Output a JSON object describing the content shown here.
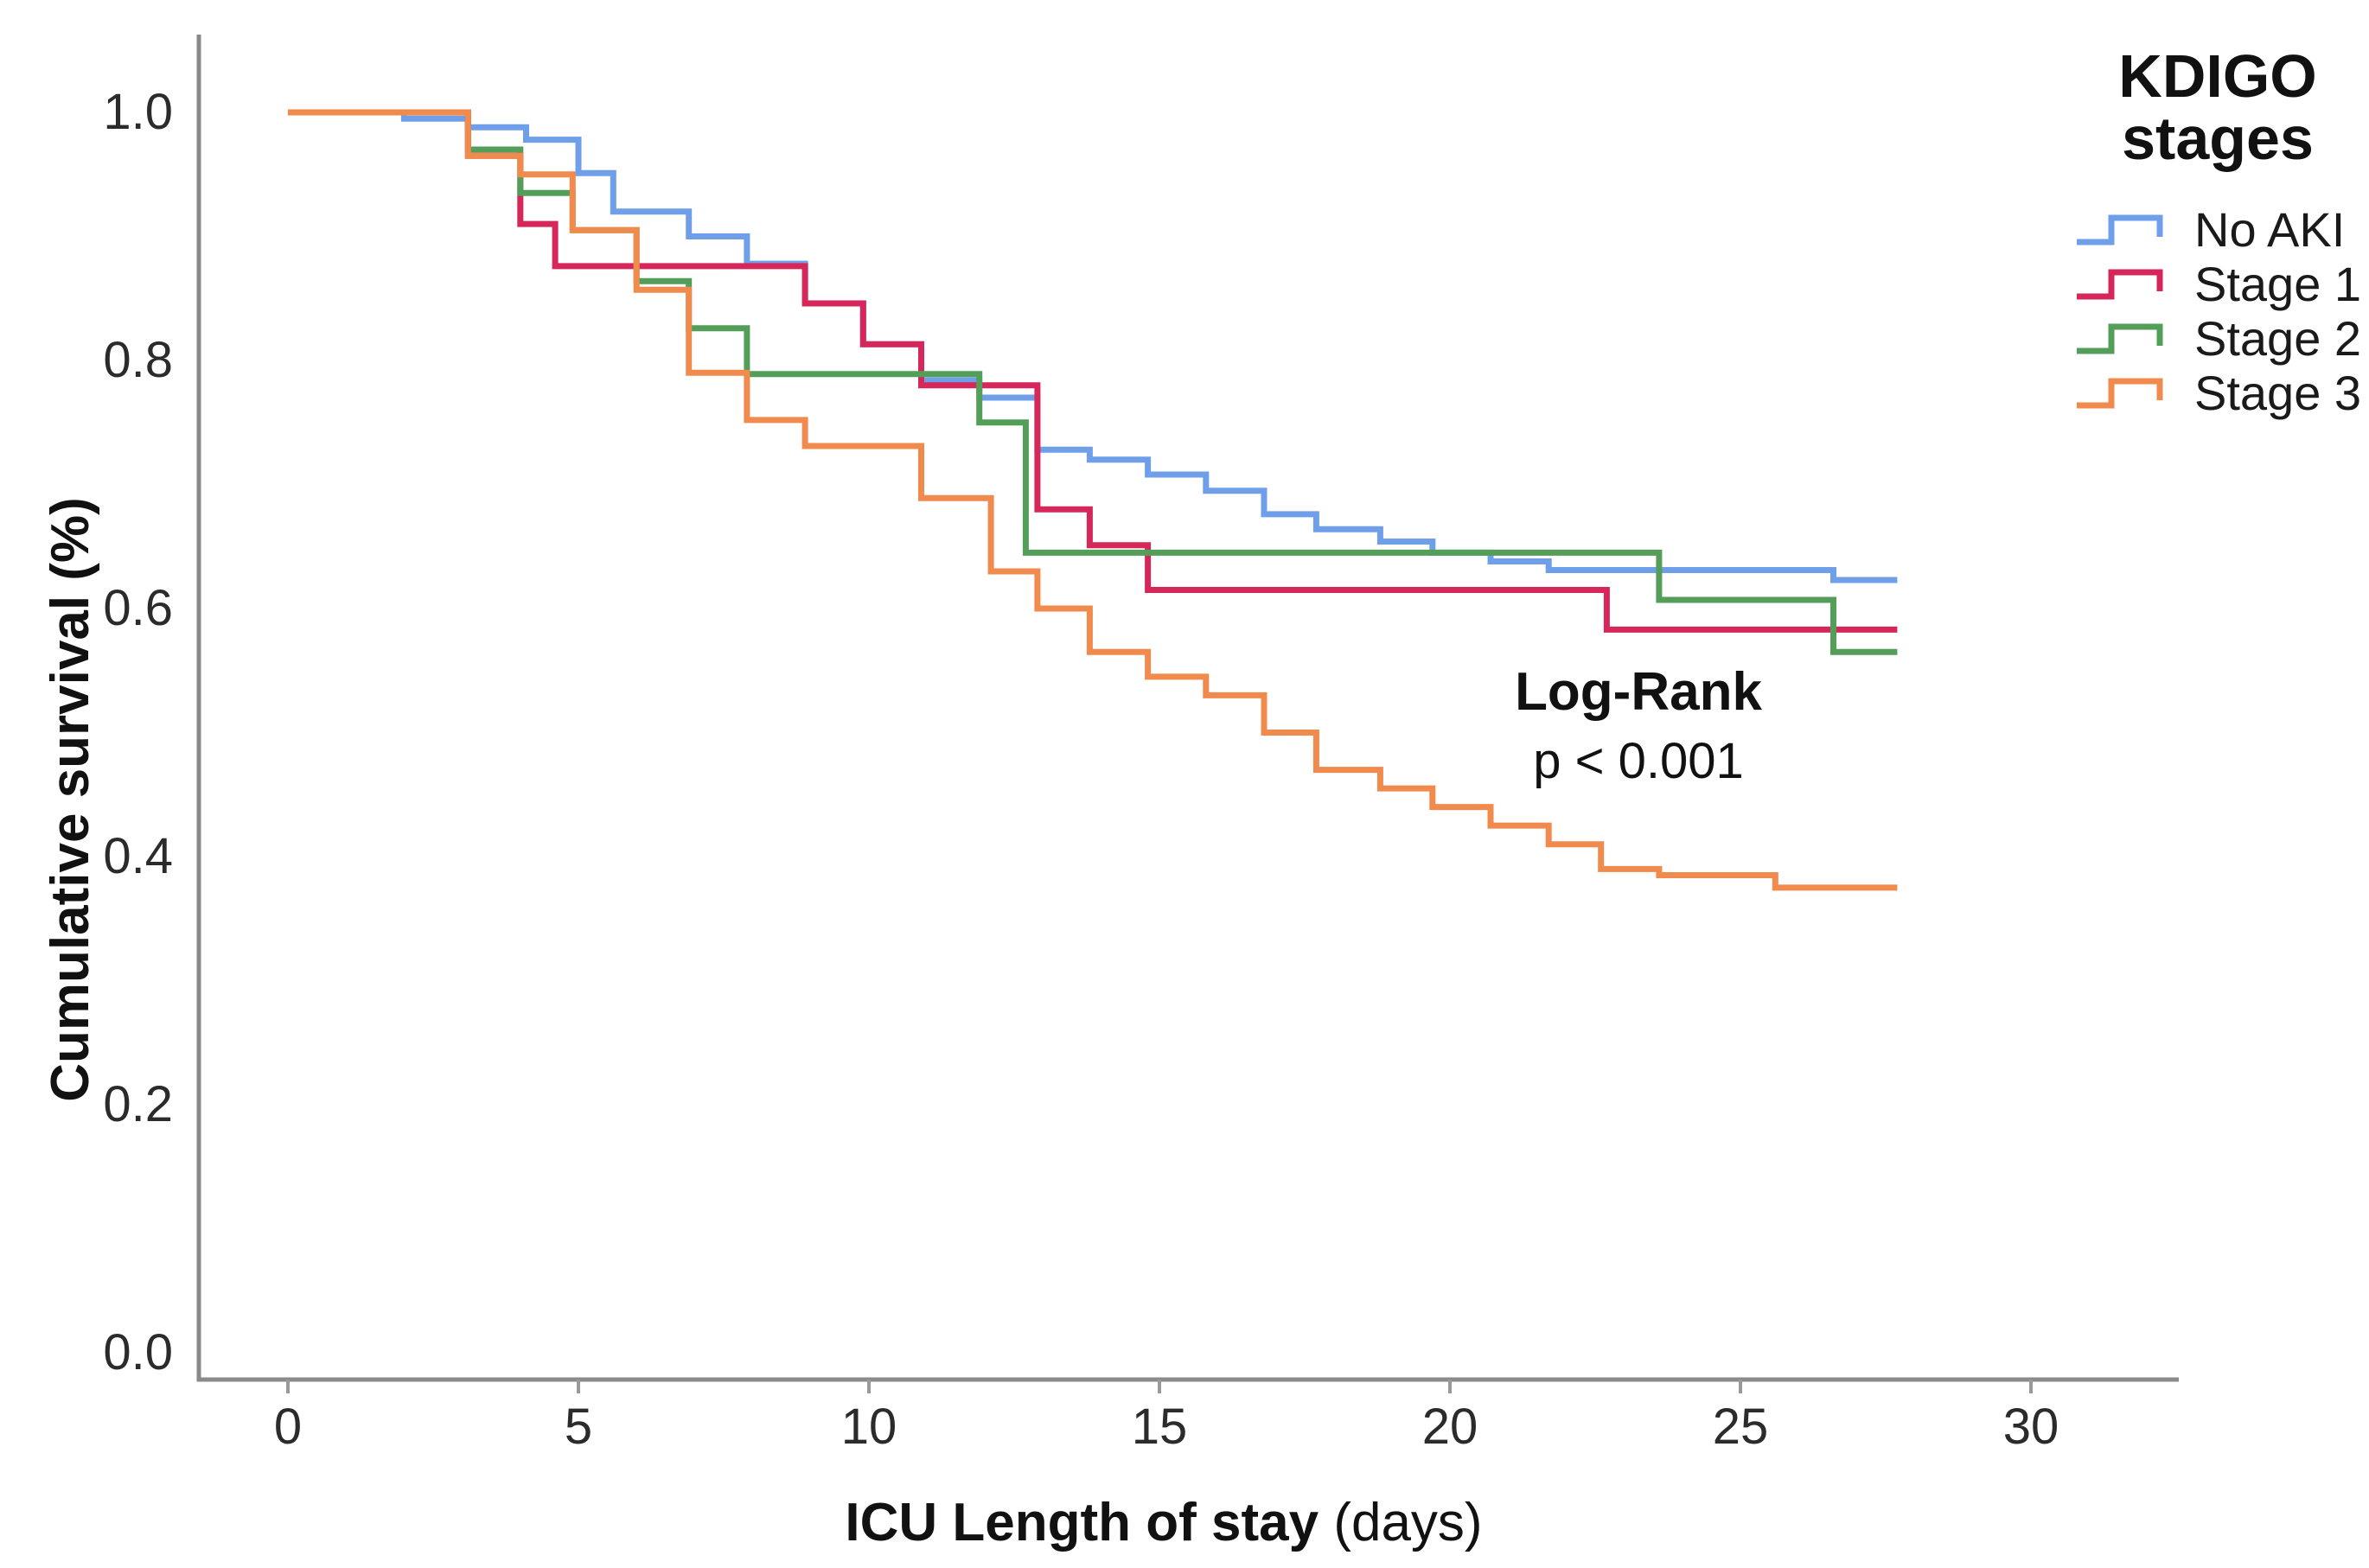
{
  "chart_data": {
    "type": "line",
    "subtype": "kaplan-meier-step",
    "title": "",
    "xlabel": "ICU Length of stay (days)",
    "xlabel_bold": "ICU Length of stay",
    "xlabel_unit": " (days)",
    "ylabel": "Cumulative survival (%)",
    "xlim": [
      0,
      30
    ],
    "ylim": [
      0.0,
      1.0
    ],
    "xticks": [
      0,
      5,
      10,
      15,
      20,
      25,
      30
    ],
    "yticks": [
      0.0,
      0.2,
      0.4,
      0.6,
      0.8,
      1.0
    ],
    "grid": false,
    "legend_position": "top-right-outside",
    "legend_title": "KDIGO\nstages",
    "annotation": {
      "line1": "Log-Rank",
      "line2": "p < 0.001"
    },
    "x_end": 27.7,
    "axis_color": "#8a8a8a",
    "series": [
      {
        "name": "No AKI",
        "color": "#6f9fe8",
        "steps": [
          [
            0,
            1.0
          ],
          [
            2.0,
            0.995
          ],
          [
            3.1,
            0.988
          ],
          [
            4.1,
            0.978
          ],
          [
            5.0,
            0.951
          ],
          [
            5.6,
            0.92
          ],
          [
            6.9,
            0.9
          ],
          [
            7.9,
            0.878
          ],
          [
            8.9,
            0.846
          ],
          [
            9.9,
            0.813
          ],
          [
            10.9,
            0.784
          ],
          [
            11.9,
            0.77
          ],
          [
            12.9,
            0.728
          ],
          [
            13.8,
            0.72
          ],
          [
            14.8,
            0.708
          ],
          [
            15.8,
            0.695
          ],
          [
            16.8,
            0.676
          ],
          [
            17.7,
            0.664
          ],
          [
            18.8,
            0.654
          ],
          [
            19.7,
            0.645
          ],
          [
            20.7,
            0.638
          ],
          [
            21.7,
            0.631
          ],
          [
            26.6,
            0.623
          ]
        ]
      },
      {
        "name": "Stage 1",
        "color": "#d6275a",
        "steps": [
          [
            0,
            1.0
          ],
          [
            3.1,
            0.965
          ],
          [
            4.0,
            0.91
          ],
          [
            4.6,
            0.876
          ],
          [
            8.9,
            0.846
          ],
          [
            9.9,
            0.813
          ],
          [
            10.9,
            0.78
          ],
          [
            12.9,
            0.68
          ],
          [
            13.8,
            0.651
          ],
          [
            14.8,
            0.615
          ],
          [
            22.7,
            0.583
          ]
        ]
      },
      {
        "name": "Stage 2",
        "color": "#539e58",
        "steps": [
          [
            0,
            1.0
          ],
          [
            3.1,
            0.97
          ],
          [
            4.0,
            0.935
          ],
          [
            4.9,
            0.905
          ],
          [
            6.0,
            0.864
          ],
          [
            6.9,
            0.826
          ],
          [
            7.9,
            0.789
          ],
          [
            11.9,
            0.75
          ],
          [
            12.7,
            0.645
          ],
          [
            23.6,
            0.607
          ],
          [
            26.6,
            0.565
          ]
        ]
      },
      {
        "name": "Stage 3",
        "color": "#f08a4d",
        "steps": [
          [
            0,
            1.0
          ],
          [
            3.1,
            0.965
          ],
          [
            4.0,
            0.95
          ],
          [
            4.9,
            0.905
          ],
          [
            6.0,
            0.857
          ],
          [
            6.9,
            0.79
          ],
          [
            7.9,
            0.752
          ],
          [
            8.9,
            0.731
          ],
          [
            10.9,
            0.689
          ],
          [
            12.1,
            0.63
          ],
          [
            12.9,
            0.6
          ],
          [
            13.8,
            0.565
          ],
          [
            14.8,
            0.545
          ],
          [
            15.8,
            0.53
          ],
          [
            16.8,
            0.5
          ],
          [
            17.7,
            0.47
          ],
          [
            18.8,
            0.455
          ],
          [
            19.7,
            0.44
          ],
          [
            20.7,
            0.425
          ],
          [
            21.7,
            0.41
          ],
          [
            22.6,
            0.39
          ],
          [
            23.6,
            0.385
          ],
          [
            25.6,
            0.375
          ]
        ]
      }
    ]
  }
}
